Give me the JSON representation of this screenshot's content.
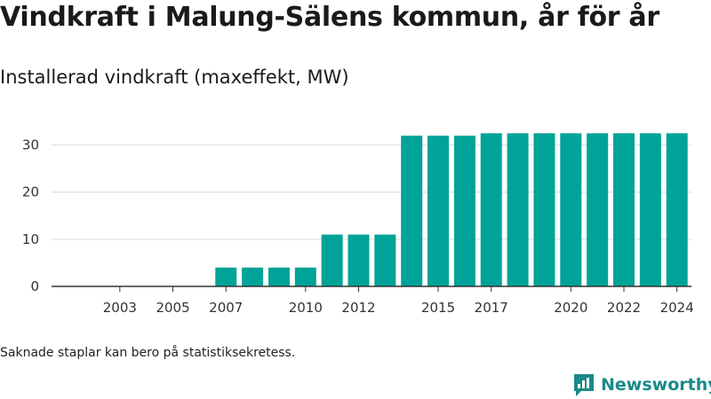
{
  "title": "Vindkraft i Malung-Sälens kommun, år för år",
  "subtitle": "Installerad vindkraft (maxeffekt, MW)",
  "footnote": "Saknade staplar kan bero på statistiksekretess.",
  "brand": {
    "name": "Newsworthy",
    "icon": "newsworthy-logo-icon"
  },
  "colors": {
    "bar": "#00a398",
    "grid": "#d9d9d9",
    "axis": "#333333",
    "brand": "#1a8a88"
  },
  "chart_data": {
    "type": "bar",
    "x_start": 2002,
    "categories": [
      "2002",
      "2003",
      "2004",
      "2005",
      "2006",
      "2007",
      "2008",
      "2009",
      "2010",
      "2011",
      "2012",
      "2013",
      "2014",
      "2015",
      "2016",
      "2017",
      "2018",
      "2019",
      "2020",
      "2021",
      "2022",
      "2023",
      "2024"
    ],
    "values": [
      null,
      null,
      null,
      null,
      null,
      4,
      4,
      4,
      4,
      11,
      11,
      11,
      32,
      32,
      32,
      32.5,
      32.5,
      32.5,
      32.5,
      32.5,
      32.5,
      32.5,
      32.5
    ],
    "x_tick_labels": [
      "2003",
      "2005",
      "2007",
      "2010",
      "2012",
      "2015",
      "2017",
      "2020",
      "2022",
      "2024"
    ],
    "y_ticks": [
      0,
      10,
      20,
      30
    ],
    "ylim": [
      0,
      33
    ],
    "grid": true,
    "legend": "none"
  }
}
